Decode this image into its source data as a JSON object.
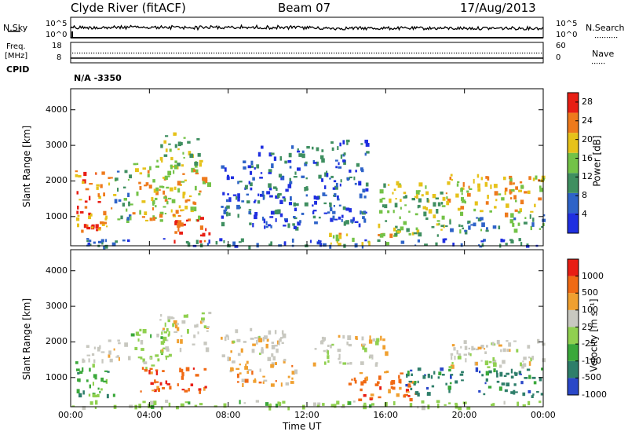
{
  "header": {
    "station": "Clyde River (fitACF)",
    "beam": "Beam 07",
    "date": "17/Aug/2013"
  },
  "top_panels": {
    "nsky_label": "N.Sky",
    "nsky_ticks": [
      "10^5",
      "10^0"
    ],
    "nsearch_label": "N.Search",
    "freq_label_1": "Freq.",
    "freq_label_2": "[MHz]",
    "freq_ticks": [
      "18",
      "8"
    ],
    "nave_label": "Nave",
    "nave_ticks": [
      "60",
      "0"
    ],
    "cpid_label": "CPID",
    "cpid_value": "N/A -3350"
  },
  "chart_data": [
    {
      "type": "heatmap",
      "name": "power",
      "xlabel": "Time UT",
      "ylabel": "Slant Range [km]",
      "x_ticks": [
        "00:00",
        "04:00",
        "08:00",
        "12:00",
        "16:00",
        "20:00",
        "00:00"
      ],
      "y_ticks": [
        "1000",
        "2000",
        "3000",
        "4000"
      ],
      "ylim": [
        180,
        4590
      ],
      "colorbar": {
        "label": "Power [dB]",
        "ticks": [
          "4",
          "8",
          "12",
          "16",
          "20",
          "24",
          "28"
        ],
        "range": [
          0,
          30
        ],
        "colors": [
          "#1f2fe0",
          "#2e63c8",
          "#3f8f60",
          "#73c247",
          "#e6c21a",
          "#ee7a1c",
          "#e81e14"
        ]
      },
      "regions": [
        {
          "t": [
            0.2,
            2.2
          ],
          "r": [
            600,
            2300
          ],
          "level": 22
        },
        {
          "t": [
            2.2,
            3.0
          ],
          "r": [
            900,
            2400
          ],
          "level": 12
        },
        {
          "t": [
            3.0,
            7.0
          ],
          "r": [
            900,
            2600
          ],
          "level": 18
        },
        {
          "t": [
            5.2,
            7.0
          ],
          "r": [
            300,
            1000
          ],
          "level": 26
        },
        {
          "t": [
            4.5,
            6.5
          ],
          "r": [
            2400,
            3400
          ],
          "level": 14
        },
        {
          "t": [
            7.6,
            9.5
          ],
          "r": [
            800,
            2600
          ],
          "level": 8
        },
        {
          "t": [
            9.5,
            12.0
          ],
          "r": [
            700,
            3000
          ],
          "level": 6
        },
        {
          "t": [
            12.2,
            15.0
          ],
          "r": [
            800,
            3200
          ],
          "level": 5
        },
        {
          "t": [
            13.0,
            16.5
          ],
          "r": [
            250,
            600
          ],
          "level": 20
        },
        {
          "t": [
            15.5,
            19.0
          ],
          "r": [
            500,
            2000
          ],
          "level": 17
        },
        {
          "t": [
            19.0,
            24.0
          ],
          "r": [
            1100,
            2200
          ],
          "level": 21
        },
        {
          "t": [
            19.0,
            24.0
          ],
          "r": [
            600,
            1100
          ],
          "level": 10
        },
        {
          "t": [
            0.0,
            24.0
          ],
          "r": [
            180,
            400
          ],
          "level": 6
        }
      ]
    },
    {
      "type": "heatmap",
      "name": "velocity",
      "xlabel": "Time UT",
      "ylabel": "Slant Range [km]",
      "x_ticks": [
        "00:00",
        "04:00",
        "08:00",
        "12:00",
        "16:00",
        "20:00",
        "00:00"
      ],
      "y_ticks": [
        "1000",
        "2000",
        "3000",
        "4000"
      ],
      "ylim": [
        180,
        4590
      ],
      "colorbar": {
        "label": "Velocity [m s⁻¹]",
        "ticks": [
          "1000",
          "500",
          "100",
          "25",
          "-25",
          "-100",
          "-500",
          "-1000"
        ],
        "colors": [
          "#2a47c8",
          "#2e7e6a",
          "#3aa83a",
          "#90d050",
          "#c8c8c0",
          "#f0a030",
          "#f06a14",
          "#e81e14"
        ]
      },
      "regions": [
        {
          "t": [
            0.2,
            2.2
          ],
          "r": [
            500,
            1500
          ],
          "level": 2
        },
        {
          "t": [
            0.5,
            3.0
          ],
          "r": [
            1500,
            2100
          ],
          "level": 4
        },
        {
          "t": [
            3.0,
            5.0
          ],
          "r": [
            1300,
            2400
          ],
          "level": 3
        },
        {
          "t": [
            3.5,
            6.8
          ],
          "r": [
            600,
            1300
          ],
          "level": 6
        },
        {
          "t": [
            4.5,
            7.0
          ],
          "r": [
            1800,
            2900
          ],
          "level": 4
        },
        {
          "t": [
            7.6,
            11.0
          ],
          "r": [
            1400,
            2400
          ],
          "level": 4
        },
        {
          "t": [
            8.0,
            11.5
          ],
          "r": [
            800,
            1400
          ],
          "level": 5
        },
        {
          "t": [
            12.2,
            16.0
          ],
          "r": [
            1400,
            2200
          ],
          "level": 4
        },
        {
          "t": [
            14.0,
            17.5
          ],
          "r": [
            400,
            1200
          ],
          "level": 6
        },
        {
          "t": [
            17.0,
            20.0
          ],
          "r": [
            500,
            1300
          ],
          "level": 1
        },
        {
          "t": [
            19.0,
            24.0
          ],
          "r": [
            1300,
            2100
          ],
          "level": 4
        },
        {
          "t": [
            20.5,
            24.0
          ],
          "r": [
            500,
            1300
          ],
          "level": 1
        },
        {
          "t": [
            0.0,
            24.0
          ],
          "r": [
            180,
            380
          ],
          "level": 3
        }
      ]
    }
  ]
}
